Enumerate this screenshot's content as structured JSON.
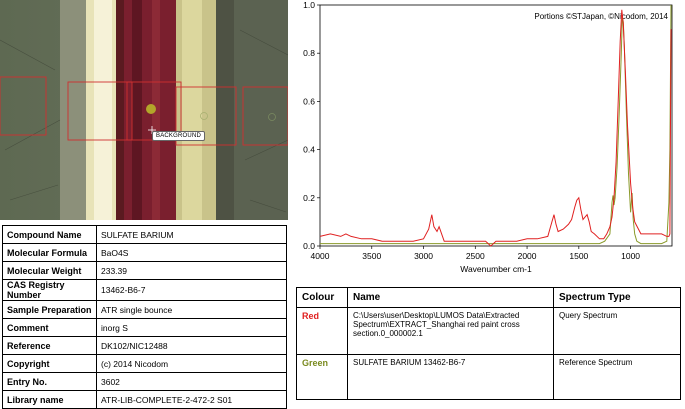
{
  "microscope": {
    "background_label": "BACKGROUND"
  },
  "compound": {
    "rows": [
      {
        "key": "Compound Name",
        "value": "SULFATE BARIUM"
      },
      {
        "key": "Molecular Formula",
        "value": "BaO4S"
      },
      {
        "key": "Molecular Weight",
        "value": "233.39"
      },
      {
        "key": "CAS Registry Number",
        "value": "13462-B6-7"
      },
      {
        "key": "Sample Preparation",
        "value": "ATR single bounce"
      },
      {
        "key": "Comment",
        "value": "inorg S"
      },
      {
        "key": "Reference",
        "value": "DK102/NIC12488"
      },
      {
        "key": "Copyright",
        "value": "(c) 2014 Nicodom"
      },
      {
        "key": "Entry No.",
        "value": "3602"
      },
      {
        "key": "Library name",
        "value": "ATR-LIB-COMPLETE-2-472-2 S01"
      }
    ]
  },
  "chart_data": {
    "type": "line",
    "title": "",
    "annotation": "Portions ©STJapan, ©Nicodom, 2014",
    "xlabel": "Wavenumber cm-1",
    "ylabel": "",
    "xlim": [
      4000,
      600
    ],
    "ylim": [
      0,
      1.0
    ],
    "x_reversed": true,
    "xticks": [
      4000,
      3500,
      3000,
      2500,
      2000,
      1500,
      1000
    ],
    "yticks": [
      0,
      0.2,
      0.4,
      0.6,
      0.8,
      1.0
    ],
    "ytick_labels": [
      "0.0",
      "0.2",
      "0.4",
      "0.6",
      "0.8",
      "1.0"
    ],
    "grid": false,
    "colors": {
      "red": "#e02020",
      "green": "#8a9a2a"
    },
    "series": [
      {
        "color": "red",
        "x": [
          4000,
          3900,
          3800,
          3750,
          3700,
          3600,
          3500,
          3400,
          3300,
          3200,
          3100,
          3000,
          2950,
          2920,
          2900,
          2870,
          2850,
          2800,
          2700,
          2600,
          2500,
          2400,
          2350,
          2300,
          2200,
          2100,
          2000,
          1900,
          1800,
          1760,
          1740,
          1720,
          1700,
          1650,
          1600,
          1570,
          1540,
          1520,
          1500,
          1480,
          1460,
          1440,
          1420,
          1400,
          1380,
          1350,
          1300,
          1260,
          1230,
          1200,
          1180,
          1160,
          1140,
          1120,
          1100,
          1085,
          1070,
          1050,
          1030,
          1000,
          980,
          960,
          900,
          800,
          700,
          650,
          630,
          620,
          610
        ],
        "y": [
          0.04,
          0.05,
          0.04,
          0.05,
          0.04,
          0.03,
          0.03,
          0.02,
          0.02,
          0.02,
          0.02,
          0.03,
          0.07,
          0.13,
          0.08,
          0.06,
          0.08,
          0.02,
          0.02,
          0.02,
          0.02,
          0.02,
          0.0,
          0.02,
          0.02,
          0.02,
          0.03,
          0.03,
          0.04,
          0.1,
          0.13,
          0.09,
          0.06,
          0.07,
          0.09,
          0.11,
          0.16,
          0.19,
          0.2,
          0.15,
          0.11,
          0.12,
          0.13,
          0.1,
          0.06,
          0.05,
          0.03,
          0.03,
          0.05,
          0.08,
          0.12,
          0.2,
          0.35,
          0.6,
          0.85,
          0.98,
          0.92,
          0.72,
          0.5,
          0.26,
          0.16,
          0.1,
          0.05,
          0.05,
          0.05,
          0.04,
          0.04,
          0.05,
          0.9
        ]
      },
      {
        "color": "green",
        "x": [
          4000,
          3500,
          3000,
          2500,
          2000,
          1500,
          1300,
          1250,
          1200,
          1180,
          1170,
          1160,
          1150,
          1130,
          1110,
          1090,
          1080,
          1070,
          1060,
          1040,
          1020,
          1000,
          985,
          975,
          960,
          940,
          900,
          800,
          700,
          650,
          630,
          620,
          610
        ],
        "y": [
          0.01,
          0.01,
          0.01,
          0.01,
          0.01,
          0.01,
          0.01,
          0.02,
          0.05,
          0.18,
          0.21,
          0.17,
          0.2,
          0.33,
          0.55,
          0.8,
          0.95,
          0.93,
          0.82,
          0.55,
          0.3,
          0.14,
          0.22,
          0.11,
          0.05,
          0.02,
          0.01,
          0.01,
          0.01,
          0.02,
          0.18,
          0.4,
          1.0
        ]
      }
    ]
  },
  "legend": {
    "headers": [
      "Colour",
      "Name",
      "Spectrum Type"
    ],
    "rows": [
      {
        "colour": "Red",
        "name": "C:\\Users\\user\\Desktop\\LUMOS Data\\Extracted Spectrum\\EXTRACT_Shanghai red paint cross section.0_000002.1",
        "type": "Query Spectrum"
      },
      {
        "colour": "Green",
        "name": "SULFATE BARIUM 13462-B6-7",
        "type": "Reference Spectrum"
      }
    ]
  }
}
